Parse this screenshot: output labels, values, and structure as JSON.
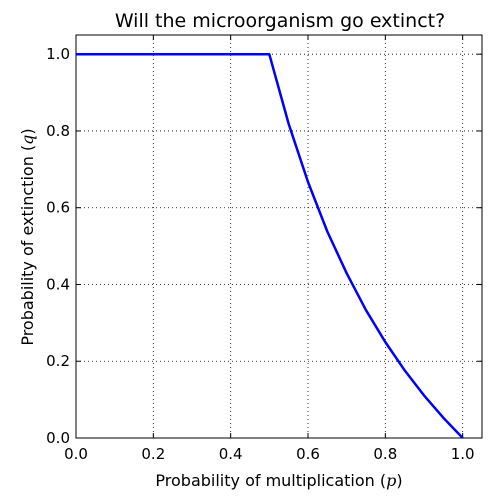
{
  "chart_data": {
    "type": "line",
    "title": "Will the microorganism go extinct?",
    "xlabel": "Probability of multiplication (",
    "xlabel_var": "p",
    "xlabel_close": ")",
    "ylabel": "Probability of extinction (",
    "ylabel_var": "q",
    "ylabel_close": ")",
    "xlim": [
      0.0,
      1.05
    ],
    "ylim": [
      0.0,
      1.05
    ],
    "xticks": [
      0.0,
      0.2,
      0.4,
      0.6,
      0.8,
      1.0
    ],
    "xtick_labels": [
      "0.0",
      "0.2",
      "0.4",
      "0.6",
      "0.8",
      "1.0"
    ],
    "yticks": [
      0.0,
      0.2,
      0.4,
      0.6,
      0.8,
      1.0
    ],
    "ytick_labels": [
      "0.0",
      "0.2",
      "0.4",
      "0.6",
      "0.8",
      "1.0"
    ],
    "grid": true,
    "series": [
      {
        "color": "#0000ff",
        "x": [
          0.0,
          0.1,
          0.2,
          0.3,
          0.4,
          0.5,
          0.55,
          0.6,
          0.65,
          0.7,
          0.75,
          0.8,
          0.85,
          0.9,
          0.95,
          1.0
        ],
        "y": [
          1.0,
          1.0,
          1.0,
          1.0,
          1.0,
          1.0,
          0.818,
          0.667,
          0.538,
          0.429,
          0.333,
          0.25,
          0.176,
          0.111,
          0.053,
          0.0
        ]
      }
    ]
  }
}
